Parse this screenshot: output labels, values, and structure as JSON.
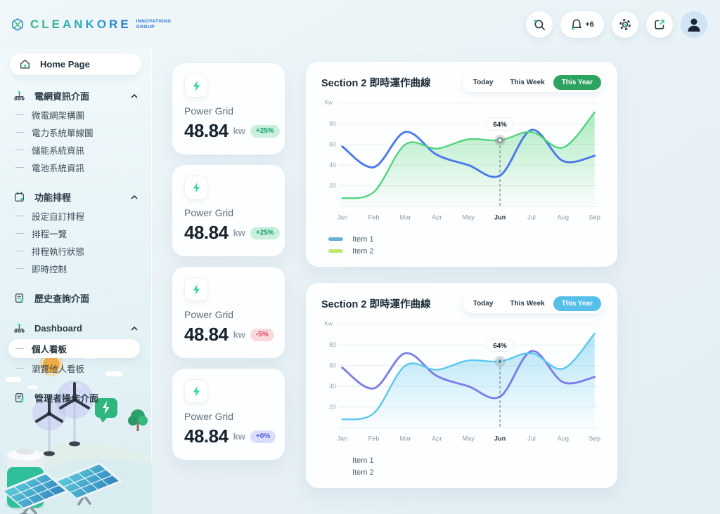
{
  "brand": {
    "name": "CLEANKORE",
    "tagline_line1": "INNOVATIONS",
    "tagline_line2": "GROUP"
  },
  "header": {
    "notification_count": "+6"
  },
  "theme": {
    "accent_green": "#3fd6a5",
    "page_bg": "#e9f2f6",
    "card_bg": "#fdfeff"
  },
  "sidebar": {
    "home_label": "Home Page",
    "groups": [
      {
        "label": "電網資訊介面",
        "expanded": true,
        "children": [
          "微電網架構圖",
          "電力系統單線圖",
          "儲能系統資訊",
          "電池系統資訊"
        ]
      },
      {
        "label": "功能排程",
        "expanded": true,
        "children": [
          "設定自訂排程",
          "排程一覽",
          "排程執行狀態",
          "即時控制"
        ]
      },
      {
        "label": "歷史查詢介面",
        "expanded": false,
        "children": []
      },
      {
        "label": "Dashboard",
        "expanded": true,
        "children": [
          "個人看板",
          "瀏覽他人看板"
        ]
      },
      {
        "label": "管理者操作介面",
        "expanded": false,
        "children": []
      }
    ],
    "active_item": "個人看板"
  },
  "cards": [
    {
      "title": "Power Grid",
      "value": "48.84",
      "unit": "kw",
      "badge": {
        "label": "+25%",
        "bg": "#c9efdd",
        "fg": "#129b6c"
      }
    },
    {
      "title": "Power Grid",
      "value": "48.84",
      "unit": "kw",
      "badge": {
        "label": "+25%",
        "bg": "#c9efdd",
        "fg": "#129b6c"
      }
    },
    {
      "title": "Power Grid",
      "value": "48.84",
      "unit": "kw",
      "badge": {
        "label": "-5%",
        "bg": "#f9d9de",
        "fg": "#e23a5f"
      }
    },
    {
      "title": "Power Grid",
      "value": "48.84",
      "unit": "kw",
      "badge": {
        "label": "+0%",
        "bg": "#d9ddf9",
        "fg": "#4d5ce0"
      }
    }
  ],
  "charts_ui": [
    {
      "title": "Section 2 即時運作曲線",
      "tabs": [
        "Today",
        "This Week",
        "This Year"
      ],
      "active_tab": "This Year",
      "active_tab_color": "#2ca35f"
    },
    {
      "title": "Section 2 即時運作曲線",
      "tabs": [
        "Today",
        "This Week",
        "This Year"
      ],
      "active_tab": "This Year",
      "active_tab_color": "#55bee9"
    }
  ],
  "chart_data": [
    {
      "type": "area",
      "title": "Section 2 即時運作曲線",
      "ylabel": "Kw",
      "xlabel": "",
      "x": [
        "Jan",
        "Feb",
        "Mar",
        "Apr",
        "May",
        "Jun",
        "Jul",
        "Aug",
        "Sep"
      ],
      "ylim": [
        0,
        100
      ],
      "yticks": [
        20,
        40,
        60,
        80
      ],
      "grid": true,
      "legend_position": "bottom-left",
      "series": [
        {
          "name": "Item 1",
          "type": "line",
          "color": "#4b7ae8",
          "legend_swatch": "#68b1cf",
          "values": [
            58,
            38,
            72,
            50,
            40,
            30,
            74,
            44,
            49
          ]
        },
        {
          "name": "Item 2",
          "type": "area",
          "color": "#4fd37d",
          "legend_swatch": "#bce96d",
          "fill_top": "rgba(94,214,130,0.50)",
          "fill_bottom": "rgba(94,214,130,0.02)",
          "values": [
            8,
            14,
            60,
            56,
            65,
            64,
            72,
            57,
            91
          ]
        }
      ],
      "annotation": {
        "x": "Jun",
        "x_index": 5,
        "series": "Item 2",
        "label": "64%",
        "value": 64,
        "marker_ring": "#8a9298",
        "marker_dot": "#ffffff"
      }
    },
    {
      "type": "area",
      "title": "Section 2 即時運作曲線",
      "ylabel": "Kw",
      "xlabel": "",
      "x": [
        "Jan",
        "Feb",
        "Mar",
        "Apr",
        "May",
        "Jun",
        "Jul",
        "Aug",
        "Sep"
      ],
      "ylim": [
        0,
        100
      ],
      "yticks": [
        20,
        40,
        60,
        80
      ],
      "grid": true,
      "legend_position": "bottom-left",
      "series": [
        {
          "name": "Item 1",
          "type": "line",
          "color": "#7b80e4",
          "legend_swatch": "transparent",
          "values": [
            58,
            38,
            72,
            50,
            40,
            30,
            74,
            44,
            49
          ]
        },
        {
          "name": "Item 2",
          "type": "area",
          "color": "#58c6ee",
          "legend_swatch": "transparent",
          "fill_top": "rgba(95,198,240,0.48)",
          "fill_bottom": "rgba(95,198,240,0.02)",
          "values": [
            8,
            14,
            60,
            56,
            65,
            64,
            72,
            57,
            91
          ]
        }
      ],
      "annotation": {
        "x": "Jun",
        "x_index": 5,
        "series": "Item 2",
        "label": "64%",
        "value": 64,
        "marker_ring": "#c2cdd3",
        "marker_dot": "#1f8fb8"
      }
    }
  ]
}
